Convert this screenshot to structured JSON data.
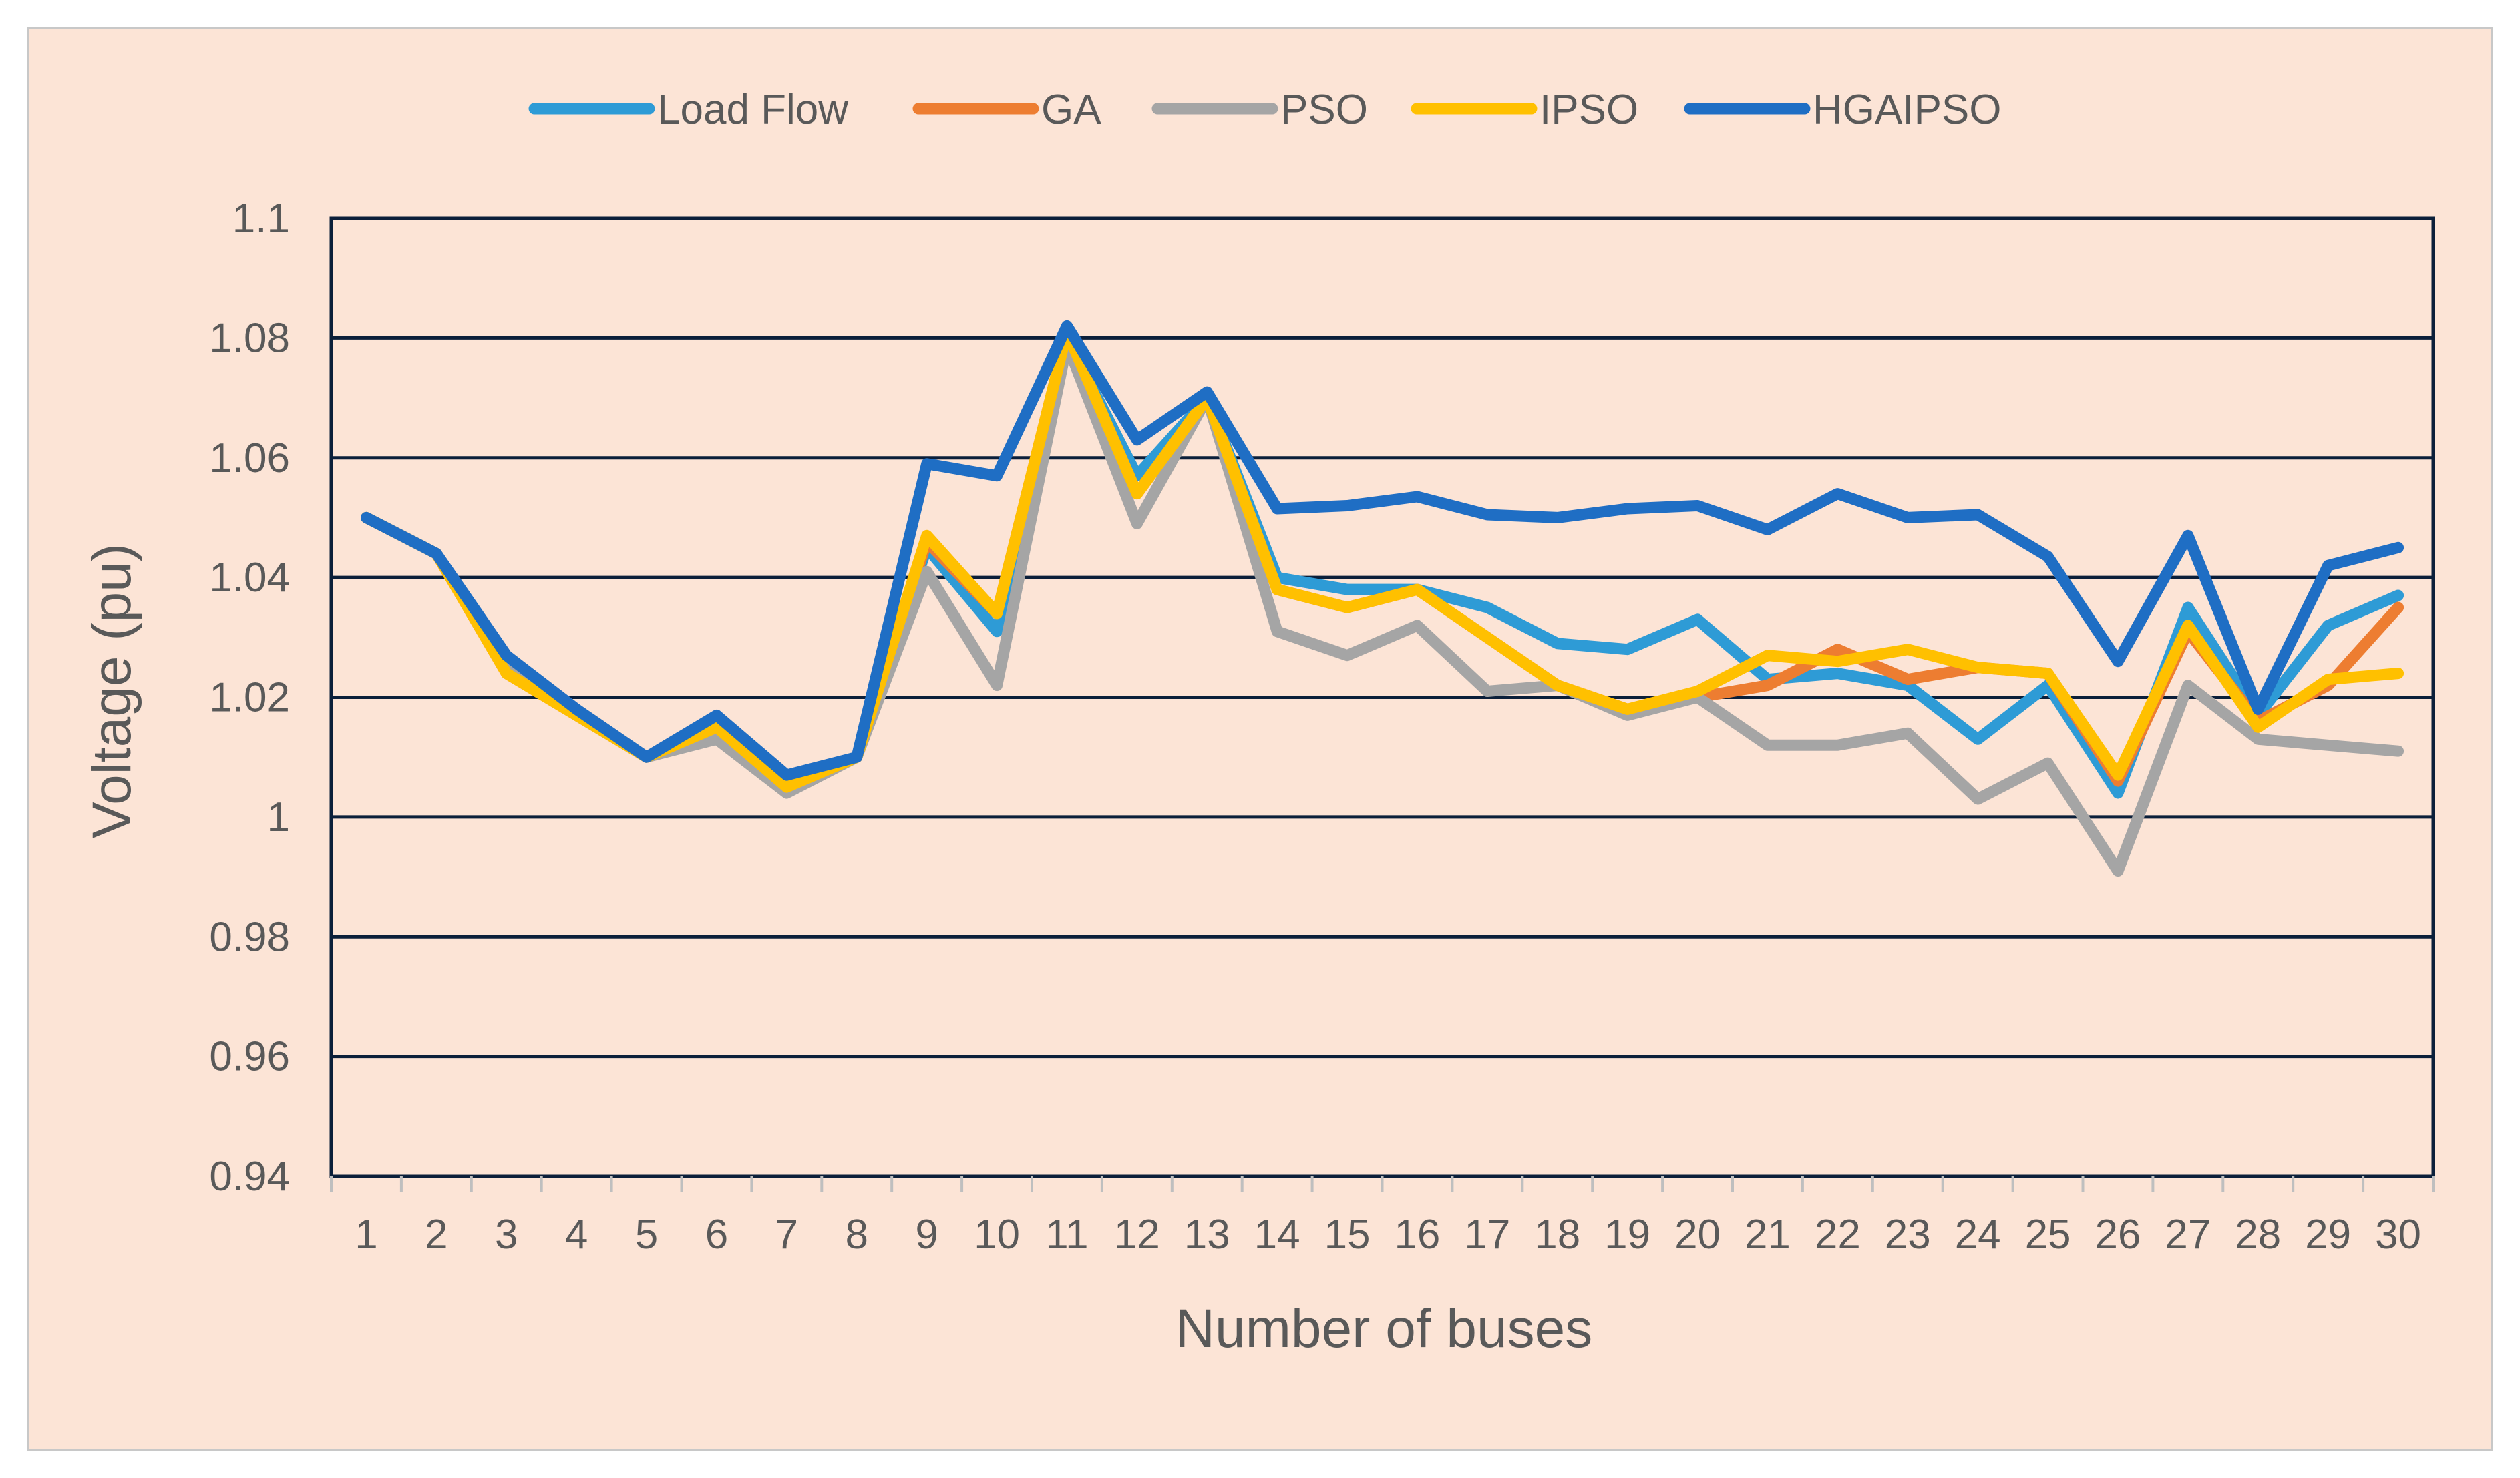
{
  "chart_data": {
    "type": "line",
    "title": "",
    "xlabel": "Number of buses",
    "ylabel": "Voltage (pu)",
    "ylim": [
      0.94,
      1.1
    ],
    "yticks": [
      "0.94",
      "0.96",
      "0.98",
      "1",
      "1.02",
      "1.04",
      "1.06",
      "1.08",
      "1.1"
    ],
    "grid": true,
    "legend_position": "top",
    "categories": [
      "1",
      "2",
      "3",
      "4",
      "5",
      "6",
      "7",
      "8",
      "9",
      "10",
      "11",
      "12",
      "13",
      "14",
      "15",
      "16",
      "17",
      "18",
      "19",
      "20",
      "21",
      "22",
      "23",
      "24",
      "25",
      "26",
      "27",
      "28",
      "29",
      "30"
    ],
    "series": [
      {
        "name": "Load Flow",
        "color": "#2E9BD6",
        "values": [
          1.05,
          1.044,
          1.025,
          1.017,
          1.01,
          1.015,
          1.006,
          1.01,
          1.045,
          1.031,
          1.08,
          1.057,
          1.07,
          1.04,
          1.038,
          1.038,
          1.035,
          1.029,
          1.028,
          1.033,
          1.023,
          1.024,
          1.022,
          1.013,
          1.022,
          1.004,
          1.035,
          1.017,
          1.032,
          1.037
        ]
      },
      {
        "name": "GA",
        "color": "#ED7D31",
        "values": [
          1.05,
          1.044,
          1.024,
          1.017,
          1.01,
          1.016,
          1.005,
          1.01,
          1.046,
          1.034,
          1.081,
          1.054,
          1.07,
          1.038,
          1.035,
          1.038,
          1.03,
          1.022,
          1.018,
          1.02,
          1.022,
          1.028,
          1.023,
          1.025,
          1.024,
          1.006,
          1.031,
          1.016,
          1.022,
          1.035
        ]
      },
      {
        "name": "PSO",
        "color": "#A5A5A5",
        "values": [
          1.05,
          1.044,
          1.026,
          1.018,
          1.01,
          1.013,
          1.004,
          1.01,
          1.041,
          1.022,
          1.079,
          1.049,
          1.07,
          1.031,
          1.027,
          1.032,
          1.021,
          1.022,
          1.017,
          1.02,
          1.012,
          1.012,
          1.014,
          1.003,
          1.009,
          0.991,
          1.022,
          1.013,
          1.012,
          1.011
        ]
      },
      {
        "name": "IPSO",
        "color": "#FFC000",
        "values": [
          1.05,
          1.044,
          1.024,
          1.017,
          1.01,
          1.015,
          1.005,
          1.01,
          1.047,
          1.034,
          1.081,
          1.054,
          1.07,
          1.038,
          1.035,
          1.038,
          1.03,
          1.022,
          1.018,
          1.021,
          1.027,
          1.026,
          1.028,
          1.025,
          1.024,
          1.007,
          1.032,
          1.015,
          1.023,
          1.024
        ]
      },
      {
        "name": "HGAIPSO",
        "color": "#1F6EC4",
        "values": [
          1.05,
          1.044,
          1.027,
          1.018,
          1.01,
          1.017,
          1.007,
          1.01,
          1.059,
          1.057,
          1.082,
          1.063,
          1.071,
          1.0515,
          1.052,
          1.0535,
          1.0505,
          1.05,
          1.0515,
          1.052,
          1.048,
          1.054,
          1.05,
          1.0505,
          1.0435,
          1.026,
          1.047,
          1.018,
          1.042,
          1.045
        ]
      }
    ]
  }
}
